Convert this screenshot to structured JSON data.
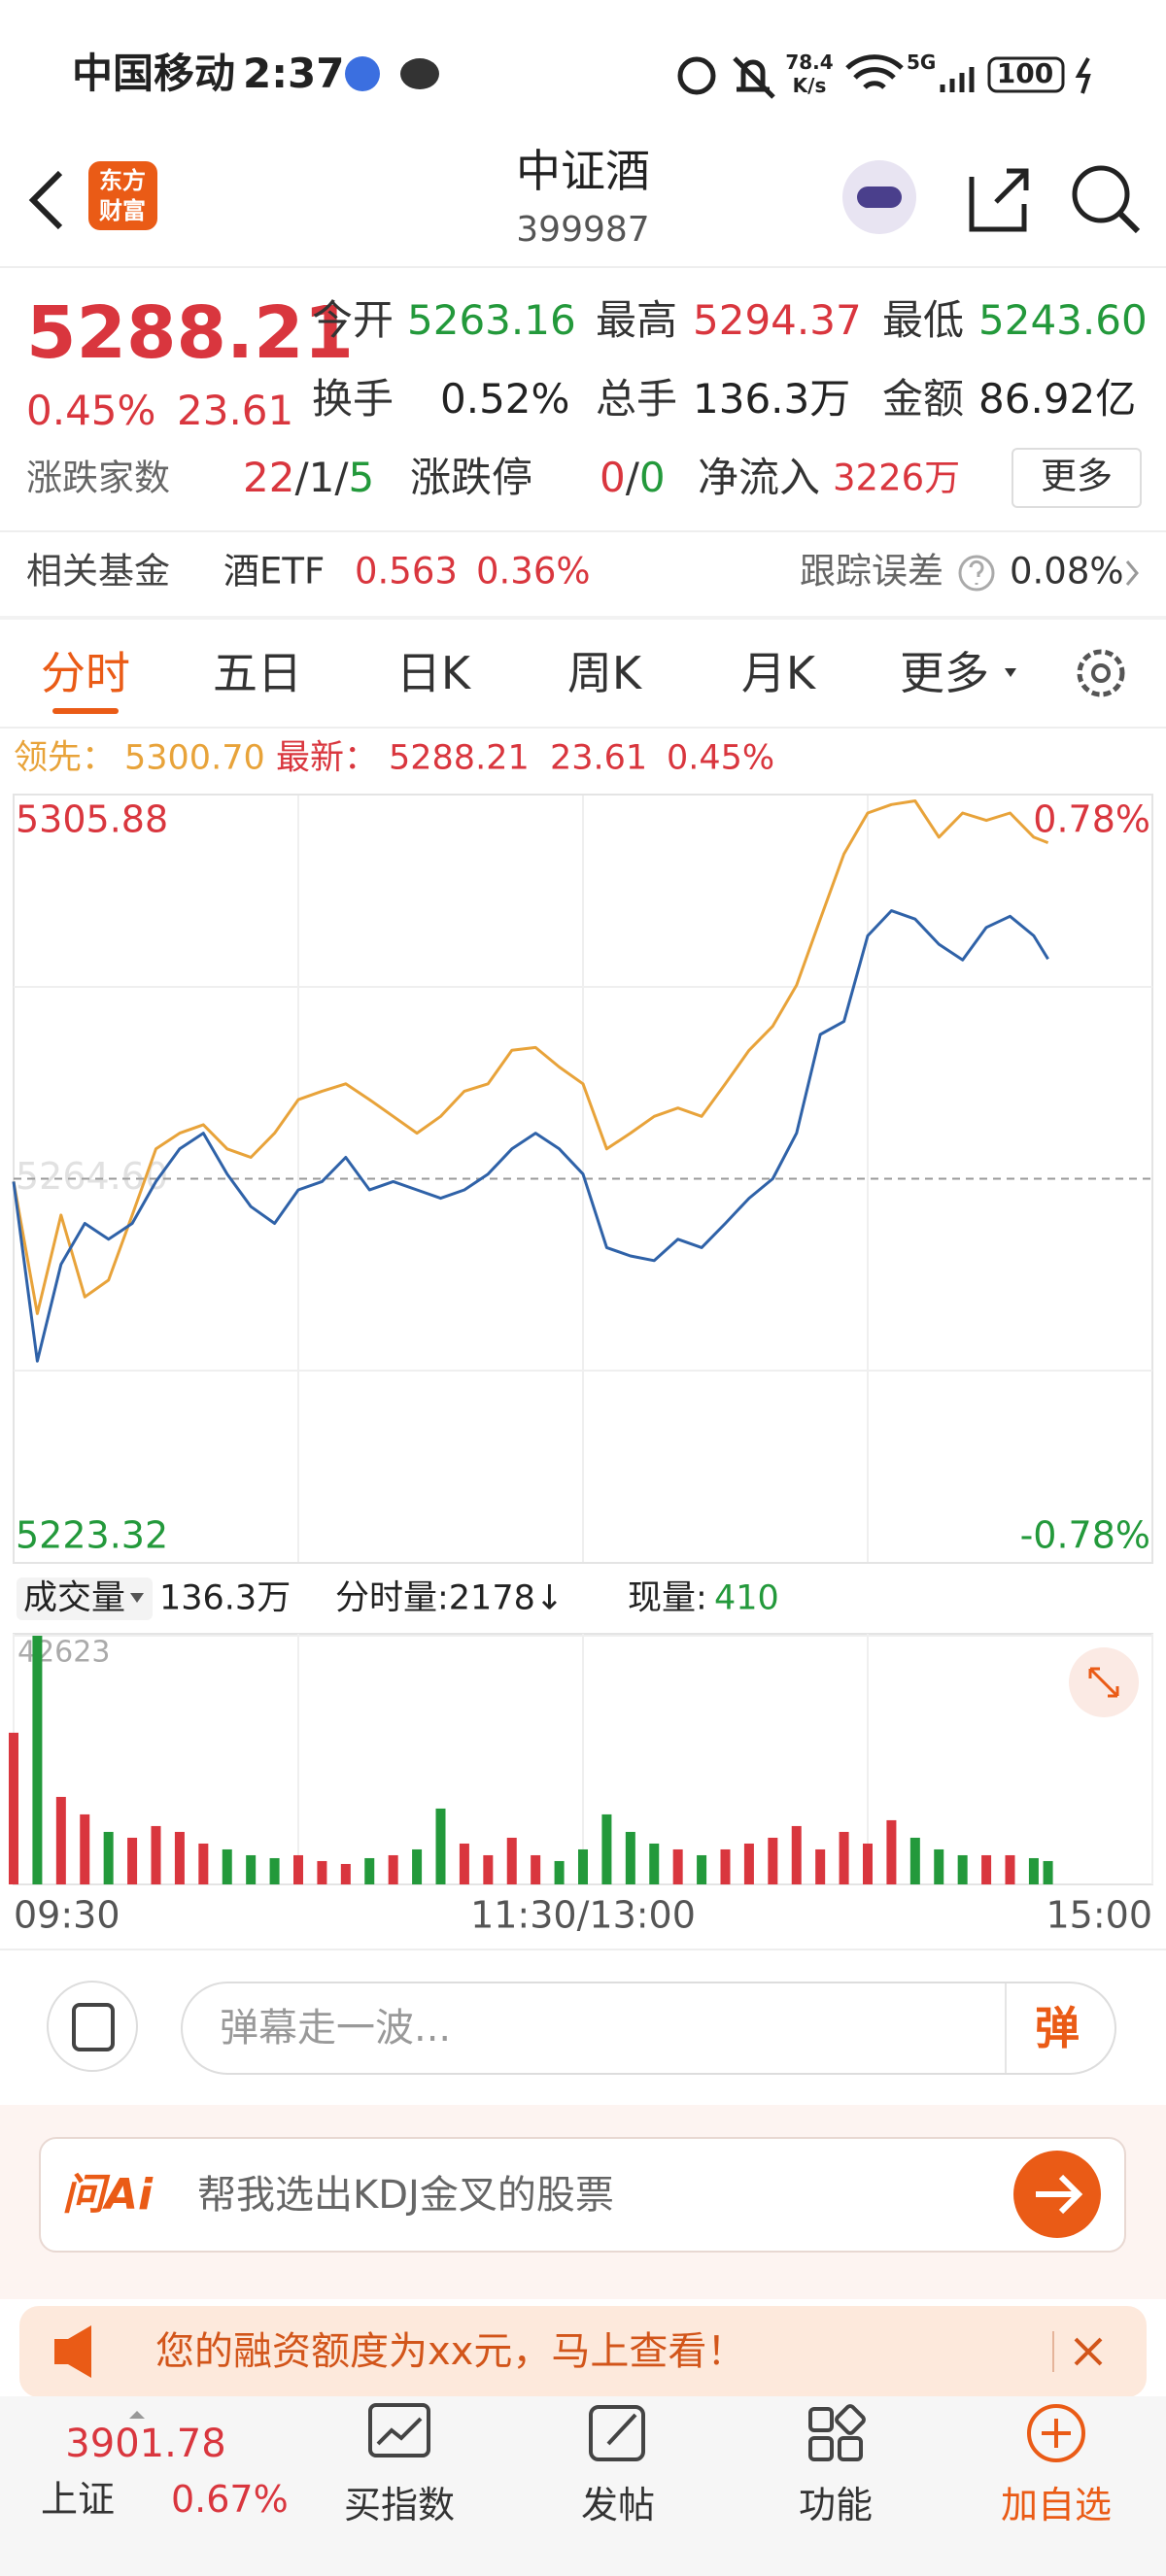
{
  "status_bar": {
    "carrier": "中国移动",
    "time": "2:37",
    "speed": "78.4",
    "speed_unit": "K/s",
    "network": "5G",
    "battery": "100"
  },
  "header": {
    "logo": [
      "东方",
      "财富"
    ],
    "name": "中证酒",
    "code": "399987"
  },
  "quote": {
    "price": "5288.21",
    "change_pct": "0.45%",
    "change": "23.61",
    "stats": [
      {
        "label": "今开",
        "value": "5263.16"
      },
      {
        "label": "最高",
        "value": "5294.37"
      },
      {
        "label": "最低",
        "value": "5243.60"
      },
      {
        "label": "换手",
        "value": "0.52%"
      },
      {
        "label": "总手",
        "value": "136.3万"
      },
      {
        "label": "金额",
        "value": "86.92亿"
      }
    ],
    "breadth_label": "涨跌家数",
    "breadth": [
      "22",
      "/",
      "1",
      "/",
      "5"
    ],
    "limit_label": "涨跌停",
    "limit": [
      "0",
      "/",
      "0"
    ],
    "inflow_label": "净流入",
    "inflow": "3226万",
    "more": "更多"
  },
  "fund": {
    "label": "相关基金",
    "name": "酒ETF",
    "price": "0.563",
    "pct": "0.36%",
    "tracking_label": "跟踪误差",
    "tracking": "0.08%"
  },
  "tabs": [
    "分时",
    "五日",
    "日K",
    "周K",
    "月K",
    "更多"
  ],
  "legend": {
    "lead": "5300.70",
    "latest": "5288.21",
    "change": "23.61",
    "pct": "0.45%"
  },
  "volume_info": {
    "total": "136.3万",
    "tick_volume": "分时量:2178↓",
    "current_label": "现量:",
    "current": "410"
  },
  "chart_data": [
    {
      "type": "line",
      "x": [
        0,
        5,
        10,
        15,
        20,
        25,
        30,
        35,
        40,
        45,
        50,
        55,
        60,
        65,
        70,
        75,
        80,
        85,
        90,
        95,
        100,
        105,
        110,
        115,
        120,
        125,
        130,
        135,
        140,
        145,
        150,
        155,
        160,
        165,
        170,
        175,
        180,
        185,
        190,
        195,
        200,
        205,
        210,
        215,
        218
      ],
      "xlim": [
        0,
        240
      ],
      "ylim": [
        5223.32,
        5305.88
      ],
      "yticks": [
        5305.88,
        {
          "value": 5264.6,
          "label": "5264.60"
        },
        5223.32
      ],
      "y2lim": [
        -0.78,
        0.78
      ],
      "y2ticks": [
        {
          "value": 0.78,
          "label": "0.78%"
        },
        {
          "value": -0.78,
          "label": "-0.78%"
        }
      ],
      "series": [
        {
          "name": "领先：",
          "color": "#e8a33a",
          "values": [
            5264.3,
            5250.1,
            5260.7,
            5251.9,
            5253.7,
            5260.7,
            5267.8,
            5269.5,
            5270.4,
            5267.8,
            5266.9,
            5269.5,
            5273.1,
            5274.0,
            5274.8,
            5273.1,
            5271.3,
            5269.5,
            5271.3,
            5274.0,
            5274.8,
            5278.4,
            5278.7,
            5276.6,
            5274.8,
            5267.8,
            5269.5,
            5271.3,
            5272.2,
            5271.3,
            5274.8,
            5278.4,
            5281.0,
            5285.4,
            5292.5,
            5299.5,
            5303.9,
            5304.8,
            5305.2,
            5301.3,
            5303.9,
            5303.1,
            5303.9,
            5301.3,
            5300.7
          ]
        },
        {
          "name": "最新：",
          "color": "#2f62a8",
          "values": [
            5264.3,
            5245.0,
            5255.4,
            5259.8,
            5258.1,
            5259.8,
            5264.3,
            5267.8,
            5269.5,
            5265.1,
            5261.6,
            5259.8,
            5263.4,
            5264.3,
            5266.9,
            5263.4,
            5264.3,
            5263.4,
            5262.5,
            5263.4,
            5265.1,
            5267.8,
            5269.5,
            5267.8,
            5265.1,
            5257.2,
            5256.3,
            5255.8,
            5258.1,
            5257.2,
            5259.8,
            5262.5,
            5264.6,
            5269.5,
            5280.1,
            5281.5,
            5290.7,
            5293.4,
            5292.5,
            5289.8,
            5288.1,
            5291.6,
            5292.8,
            5290.7,
            5288.21
          ]
        }
      ],
      "up_color": "#d9363e",
      "down_color": "#23993b",
      "grid": true
    },
    {
      "type": "bar",
      "title": "成交量",
      "x": [
        0,
        5,
        10,
        15,
        20,
        25,
        30,
        35,
        40,
        45,
        50,
        55,
        60,
        65,
        70,
        75,
        80,
        85,
        90,
        95,
        100,
        105,
        110,
        115,
        120,
        125,
        130,
        135,
        140,
        145,
        150,
        155,
        160,
        165,
        170,
        175,
        180,
        185,
        190,
        195,
        200,
        205,
        210,
        215,
        218
      ],
      "xlim": [
        0,
        240
      ],
      "xticks": [
        {
          "value": 0,
          "label": "09:30"
        },
        {
          "value": 120,
          "label": "11:30/13:00"
        },
        {
          "value": 240,
          "label": "15:00"
        }
      ],
      "ylim": [
        0,
        42623
      ],
      "yticks": [
        42623
      ],
      "values": [
        26000,
        42623,
        15000,
        12000,
        9000,
        8000,
        10000,
        9000,
        7000,
        6000,
        5000,
        4500,
        5000,
        4000,
        3500,
        4500,
        5000,
        6000,
        13000,
        7000,
        5000,
        8000,
        5000,
        4000,
        6000,
        12000,
        9000,
        7000,
        6000,
        5000,
        6000,
        7000,
        8000,
        10000,
        6000,
        9000,
        7000,
        11000,
        8000,
        6000,
        5000,
        5000,
        5000,
        4500,
        4000
      ],
      "up_color": "#d9363e",
      "down_color": "#23993b"
    }
  ],
  "comment": {
    "placeholder": "弹幕走一波...",
    "button": "弹"
  },
  "ai": {
    "brand": "问Ai",
    "prompt": "帮我选出KDJ金叉的股票"
  },
  "banner": {
    "text": "您的融资额度为xx元，马上查看！"
  },
  "bottom_nav": {
    "index_value": "3901.78",
    "index_name": "上证",
    "index_pct": "0.67%",
    "items": [
      "买指数",
      "发帖",
      "功能",
      "加自选"
    ]
  }
}
